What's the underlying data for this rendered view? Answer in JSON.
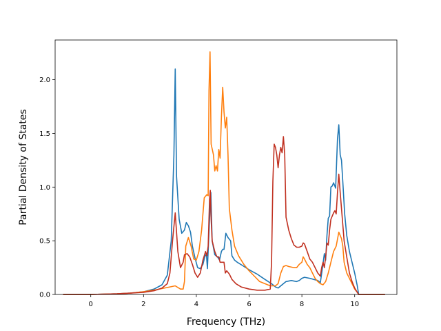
{
  "chart_data": {
    "type": "line",
    "title": "",
    "xlabel": "Frequency (THz)",
    "ylabel": "Partial Density of States",
    "xlim": [
      -1.35,
      11.6
    ],
    "ylim": [
      0.0,
      2.37
    ],
    "xticks": [
      0,
      2,
      4,
      6,
      8,
      10
    ],
    "yticks": [
      0.0,
      0.5,
      1.0,
      1.5,
      2.0
    ],
    "xtick_labels": [
      "0",
      "2",
      "4",
      "6",
      "8",
      "10"
    ],
    "ytick_labels": [
      "0.0",
      "0.5",
      "1.0",
      "1.5",
      "2.0"
    ],
    "grid": false,
    "legend": false,
    "series": [
      {
        "color": "#1f77b4",
        "points": [
          [
            -1.05,
            0
          ],
          [
            0,
            0
          ],
          [
            0.5,
            0.003
          ],
          [
            1.0,
            0.006
          ],
          [
            1.5,
            0.012
          ],
          [
            2.0,
            0.025
          ],
          [
            2.4,
            0.05
          ],
          [
            2.7,
            0.09
          ],
          [
            2.9,
            0.18
          ],
          [
            3.05,
            0.5
          ],
          [
            3.15,
            1.3
          ],
          [
            3.2,
            2.1
          ],
          [
            3.25,
            1.1
          ],
          [
            3.35,
            0.7
          ],
          [
            3.45,
            0.57
          ],
          [
            3.55,
            0.6
          ],
          [
            3.62,
            0.67
          ],
          [
            3.7,
            0.64
          ],
          [
            3.78,
            0.58
          ],
          [
            3.85,
            0.45
          ],
          [
            3.95,
            0.34
          ],
          [
            4.05,
            0.25
          ],
          [
            4.15,
            0.24
          ],
          [
            4.25,
            0.28
          ],
          [
            4.32,
            0.35
          ],
          [
            4.38,
            0.38
          ],
          [
            4.42,
            0.24
          ],
          [
            4.5,
            0.7
          ],
          [
            4.55,
            0.95
          ],
          [
            4.6,
            0.5
          ],
          [
            4.7,
            0.37
          ],
          [
            4.8,
            0.35
          ],
          [
            4.88,
            0.32
          ],
          [
            4.95,
            0.4
          ],
          [
            5.0,
            0.42
          ],
          [
            5.05,
            0.42
          ],
          [
            5.12,
            0.57
          ],
          [
            5.2,
            0.53
          ],
          [
            5.3,
            0.5
          ],
          [
            5.35,
            0.36
          ],
          [
            5.45,
            0.32
          ],
          [
            5.55,
            0.3
          ],
          [
            5.75,
            0.27
          ],
          [
            6.0,
            0.23
          ],
          [
            6.3,
            0.19
          ],
          [
            6.6,
            0.14
          ],
          [
            6.85,
            0.1
          ],
          [
            7.0,
            0.07
          ],
          [
            7.1,
            0.06
          ],
          [
            7.2,
            0.08
          ],
          [
            7.4,
            0.12
          ],
          [
            7.6,
            0.13
          ],
          [
            7.8,
            0.12
          ],
          [
            7.9,
            0.13
          ],
          [
            8.0,
            0.15
          ],
          [
            8.1,
            0.16
          ],
          [
            8.3,
            0.15
          ],
          [
            8.45,
            0.14
          ],
          [
            8.6,
            0.13
          ],
          [
            8.7,
            0.11
          ],
          [
            8.78,
            0.25
          ],
          [
            8.85,
            0.38
          ],
          [
            8.9,
            0.32
          ],
          [
            8.95,
            0.55
          ],
          [
            9.0,
            0.71
          ],
          [
            9.05,
            0.73
          ],
          [
            9.1,
            1.0
          ],
          [
            9.15,
            1.01
          ],
          [
            9.2,
            1.04
          ],
          [
            9.28,
            0.99
          ],
          [
            9.35,
            1.45
          ],
          [
            9.4,
            1.58
          ],
          [
            9.45,
            1.3
          ],
          [
            9.5,
            1.25
          ],
          [
            9.55,
            1.05
          ],
          [
            9.62,
            0.75
          ],
          [
            9.7,
            0.55
          ],
          [
            9.8,
            0.4
          ],
          [
            9.9,
            0.3
          ],
          [
            10.0,
            0.2
          ],
          [
            10.1,
            0.08
          ],
          [
            10.15,
            0.0
          ],
          [
            11.15,
            0
          ]
        ]
      },
      {
        "color": "#ff7f0e",
        "points": [
          [
            -1.05,
            0
          ],
          [
            0,
            0
          ],
          [
            0.5,
            0.003
          ],
          [
            1.0,
            0.006
          ],
          [
            1.5,
            0.012
          ],
          [
            2.0,
            0.025
          ],
          [
            2.5,
            0.045
          ],
          [
            3.0,
            0.07
          ],
          [
            3.2,
            0.08
          ],
          [
            3.4,
            0.05
          ],
          [
            3.5,
            0.05
          ],
          [
            3.55,
            0.12
          ],
          [
            3.6,
            0.45
          ],
          [
            3.7,
            0.53
          ],
          [
            3.8,
            0.45
          ],
          [
            3.9,
            0.33
          ],
          [
            4.0,
            0.32
          ],
          [
            4.1,
            0.4
          ],
          [
            4.2,
            0.6
          ],
          [
            4.3,
            0.9
          ],
          [
            4.4,
            0.93
          ],
          [
            4.45,
            0.92
          ],
          [
            4.48,
            1.9
          ],
          [
            4.52,
            2.26
          ],
          [
            4.56,
            1.4
          ],
          [
            4.65,
            1.3
          ],
          [
            4.7,
            1.15
          ],
          [
            4.75,
            1.2
          ],
          [
            4.8,
            1.15
          ],
          [
            4.85,
            1.35
          ],
          [
            4.9,
            1.27
          ],
          [
            4.95,
            1.65
          ],
          [
            5.0,
            1.93
          ],
          [
            5.05,
            1.7
          ],
          [
            5.1,
            1.55
          ],
          [
            5.15,
            1.65
          ],
          [
            5.2,
            1.3
          ],
          [
            5.25,
            0.8
          ],
          [
            5.35,
            0.6
          ],
          [
            5.45,
            0.45
          ],
          [
            5.6,
            0.36
          ],
          [
            5.8,
            0.28
          ],
          [
            6.0,
            0.22
          ],
          [
            6.2,
            0.17
          ],
          [
            6.4,
            0.12
          ],
          [
            6.6,
            0.1
          ],
          [
            6.8,
            0.08
          ],
          [
            7.0,
            0.08
          ],
          [
            7.1,
            0.1
          ],
          [
            7.2,
            0.2
          ],
          [
            7.3,
            0.26
          ],
          [
            7.4,
            0.27
          ],
          [
            7.5,
            0.26
          ],
          [
            7.7,
            0.25
          ],
          [
            7.8,
            0.25
          ],
          [
            7.9,
            0.28
          ],
          [
            8.0,
            0.3
          ],
          [
            8.05,
            0.35
          ],
          [
            8.1,
            0.33
          ],
          [
            8.2,
            0.28
          ],
          [
            8.3,
            0.25
          ],
          [
            8.4,
            0.2
          ],
          [
            8.5,
            0.15
          ],
          [
            8.6,
            0.12
          ],
          [
            8.7,
            0.1
          ],
          [
            8.8,
            0.09
          ],
          [
            8.9,
            0.12
          ],
          [
            9.0,
            0.2
          ],
          [
            9.1,
            0.3
          ],
          [
            9.2,
            0.4
          ],
          [
            9.3,
            0.45
          ],
          [
            9.4,
            0.58
          ],
          [
            9.5,
            0.52
          ],
          [
            9.55,
            0.45
          ],
          [
            9.6,
            0.3
          ],
          [
            9.7,
            0.2
          ],
          [
            9.8,
            0.15
          ],
          [
            9.9,
            0.1
          ],
          [
            10.0,
            0.05
          ],
          [
            10.1,
            0.02
          ],
          [
            10.15,
            0.0
          ],
          [
            11.15,
            0
          ]
        ]
      },
      {
        "color": "#c03020",
        "points": [
          [
            -1.05,
            0
          ],
          [
            0,
            0
          ],
          [
            0.5,
            0.003
          ],
          [
            1.0,
            0.006
          ],
          [
            1.5,
            0.012
          ],
          [
            2.0,
            0.02
          ],
          [
            2.4,
            0.035
          ],
          [
            2.7,
            0.06
          ],
          [
            2.9,
            0.1
          ],
          [
            3.0,
            0.2
          ],
          [
            3.1,
            0.5
          ],
          [
            3.2,
            0.76
          ],
          [
            3.3,
            0.4
          ],
          [
            3.4,
            0.25
          ],
          [
            3.5,
            0.3
          ],
          [
            3.55,
            0.37
          ],
          [
            3.65,
            0.38
          ],
          [
            3.75,
            0.35
          ],
          [
            3.85,
            0.28
          ],
          [
            3.95,
            0.2
          ],
          [
            4.05,
            0.16
          ],
          [
            4.15,
            0.2
          ],
          [
            4.25,
            0.32
          ],
          [
            4.35,
            0.4
          ],
          [
            4.4,
            0.36
          ],
          [
            4.45,
            0.45
          ],
          [
            4.5,
            0.88
          ],
          [
            4.53,
            0.97
          ],
          [
            4.56,
            0.7
          ],
          [
            4.6,
            0.5
          ],
          [
            4.7,
            0.4
          ],
          [
            4.78,
            0.35
          ],
          [
            4.85,
            0.35
          ],
          [
            4.9,
            0.3
          ],
          [
            5.0,
            0.3
          ],
          [
            5.05,
            0.3
          ],
          [
            5.1,
            0.2
          ],
          [
            5.15,
            0.22
          ],
          [
            5.25,
            0.19
          ],
          [
            5.35,
            0.14
          ],
          [
            5.5,
            0.1
          ],
          [
            5.7,
            0.07
          ],
          [
            6.0,
            0.05
          ],
          [
            6.3,
            0.04
          ],
          [
            6.6,
            0.04
          ],
          [
            6.8,
            0.05
          ],
          [
            6.85,
            0.3
          ],
          [
            6.9,
            1.05
          ],
          [
            6.95,
            1.4
          ],
          [
            7.0,
            1.37
          ],
          [
            7.05,
            1.3
          ],
          [
            7.1,
            1.18
          ],
          [
            7.15,
            1.3
          ],
          [
            7.2,
            1.37
          ],
          [
            7.25,
            1.32
          ],
          [
            7.3,
            1.47
          ],
          [
            7.35,
            1.3
          ],
          [
            7.4,
            0.72
          ],
          [
            7.5,
            0.6
          ],
          [
            7.6,
            0.52
          ],
          [
            7.7,
            0.46
          ],
          [
            7.8,
            0.44
          ],
          [
            7.9,
            0.44
          ],
          [
            8.0,
            0.45
          ],
          [
            8.05,
            0.48
          ],
          [
            8.1,
            0.47
          ],
          [
            8.2,
            0.4
          ],
          [
            8.3,
            0.33
          ],
          [
            8.4,
            0.3
          ],
          [
            8.5,
            0.25
          ],
          [
            8.6,
            0.2
          ],
          [
            8.7,
            0.17
          ],
          [
            8.75,
            0.25
          ],
          [
            8.8,
            0.3
          ],
          [
            8.85,
            0.25
          ],
          [
            8.9,
            0.35
          ],
          [
            8.95,
            0.48
          ],
          [
            9.0,
            0.46
          ],
          [
            9.05,
            0.6
          ],
          [
            9.1,
            0.7
          ],
          [
            9.2,
            0.76
          ],
          [
            9.25,
            0.78
          ],
          [
            9.3,
            0.75
          ],
          [
            9.35,
            0.95
          ],
          [
            9.4,
            1.12
          ],
          [
            9.45,
            0.95
          ],
          [
            9.5,
            0.8
          ],
          [
            9.55,
            0.65
          ],
          [
            9.6,
            0.5
          ],
          [
            9.7,
            0.35
          ],
          [
            9.8,
            0.2
          ],
          [
            9.9,
            0.12
          ],
          [
            10.0,
            0.06
          ],
          [
            10.1,
            0.02
          ],
          [
            10.15,
            0.0
          ],
          [
            11.15,
            0
          ]
        ]
      }
    ]
  }
}
